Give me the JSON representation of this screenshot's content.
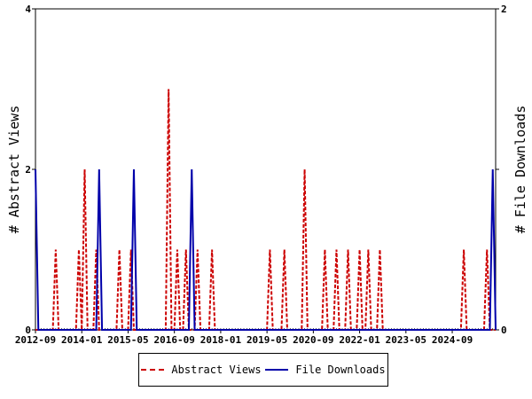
{
  "chart_data": {
    "type": "line",
    "x_ticks": [
      "2012-09",
      "2014-01",
      "2015-05",
      "2016-09",
      "2018-01",
      "2019-05",
      "2020-09",
      "2022-01",
      "2023-05",
      "2024-09"
    ],
    "x_range": [
      "2012-09",
      "2025-12"
    ],
    "left_axis": {
      "label": "# Abstract Views",
      "ylim": [
        0,
        4
      ],
      "ticks": [
        "0",
        "2",
        "4"
      ]
    },
    "right_axis": {
      "label": "# File Downloads",
      "ylim": [
        0,
        2
      ],
      "ticks": [
        "0",
        "1",
        "2"
      ]
    },
    "series": [
      {
        "name": "Abstract Views",
        "axis": "left",
        "color": "#cc0000",
        "style": "dashed",
        "points": [
          [
            "2013-04",
            1
          ],
          [
            "2013-12",
            1
          ],
          [
            "2014-02",
            2
          ],
          [
            "2014-06",
            1
          ],
          [
            "2015-02",
            1
          ],
          [
            "2015-06",
            1
          ],
          [
            "2016-07",
            3
          ],
          [
            "2016-10",
            1
          ],
          [
            "2017-01",
            1
          ],
          [
            "2017-05",
            1
          ],
          [
            "2017-10",
            1
          ],
          [
            "2019-06",
            1
          ],
          [
            "2019-11",
            1
          ],
          [
            "2020-06",
            2
          ],
          [
            "2021-01",
            1
          ],
          [
            "2021-05",
            1
          ],
          [
            "2021-09",
            1
          ],
          [
            "2022-01",
            1
          ],
          [
            "2022-04",
            1
          ],
          [
            "2022-08",
            1
          ],
          [
            "2025-01",
            1
          ],
          [
            "2025-09",
            1
          ]
        ]
      },
      {
        "name": "File Downloads",
        "axis": "right",
        "color": "#0000aa",
        "style": "solid",
        "points": [
          [
            "2012-09",
            1
          ],
          [
            "2014-07",
            1
          ],
          [
            "2015-07",
            1
          ],
          [
            "2017-03",
            1
          ],
          [
            "2025-11",
            1
          ]
        ]
      }
    ],
    "legend_position": "bottom-center"
  },
  "legend": {
    "views_label": "Abstract Views",
    "downloads_label": "File Downloads"
  }
}
